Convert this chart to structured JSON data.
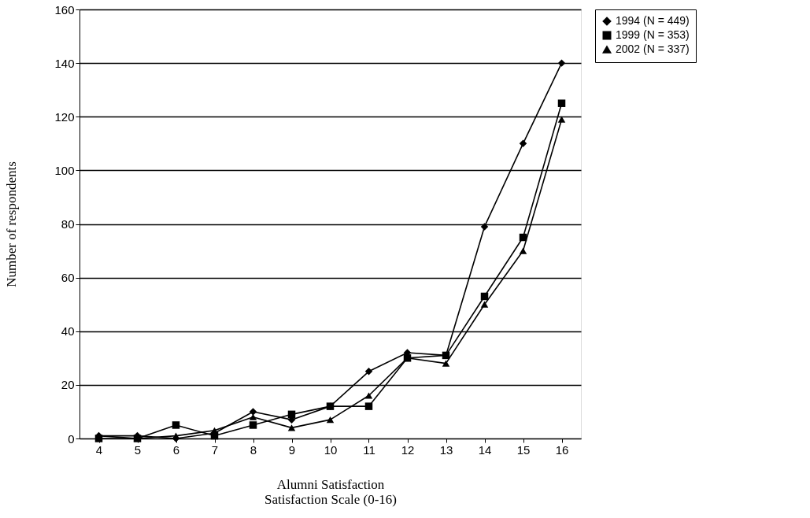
{
  "chart_data": {
    "type": "line",
    "xlabel": "Alumni Satisfaction\nSatisfaction Scale (0-16)",
    "ylabel": "Number of respondents",
    "categories": [
      "4",
      "5",
      "6",
      "7",
      "8",
      "9",
      "10",
      "11",
      "12",
      "13",
      "14",
      "15",
      "16"
    ],
    "series": [
      {
        "name": "1994 (N = 449)",
        "color": "#000000",
        "marker": "diamond",
        "values": [
          1,
          1,
          0,
          2,
          10,
          7,
          12,
          25,
          32,
          31,
          79,
          110,
          140
        ]
      },
      {
        "name": "1999 (N = 353)",
        "color": "#000000",
        "marker": "square",
        "values": [
          0,
          0,
          5,
          1,
          5,
          9,
          12,
          12,
          30,
          31,
          53,
          75,
          125
        ]
      },
      {
        "name": "2002 (N = 337)",
        "color": "#000000",
        "marker": "triangle",
        "values": [
          1,
          0,
          1,
          3,
          8,
          4,
          7,
          16,
          30,
          28,
          50,
          70,
          119
        ]
      }
    ],
    "ylim": [
      0,
      160
    ],
    "yticks": [
      0,
      20,
      40,
      60,
      80,
      100,
      120,
      140,
      160
    ],
    "grid": "y",
    "legend": "right",
    "line_style": "solid"
  }
}
